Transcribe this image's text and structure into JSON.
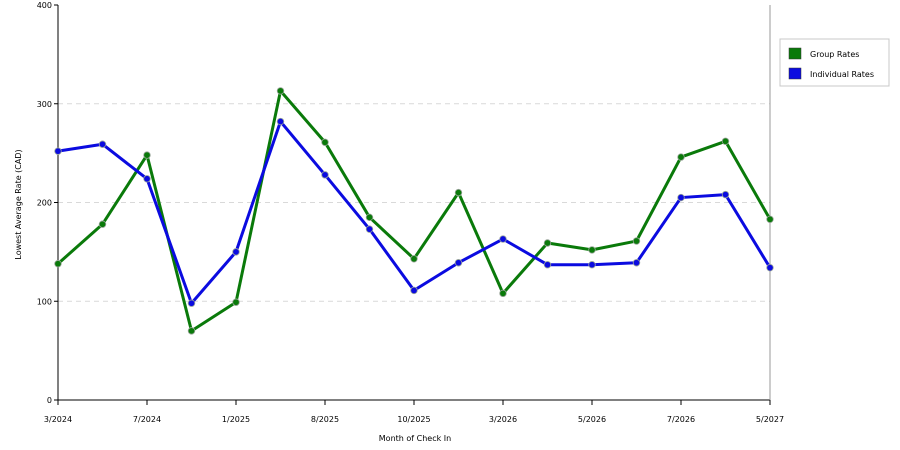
{
  "chart_data": {
    "type": "line",
    "title": "",
    "xlabel": "Month of Check In",
    "ylabel": "Lowest Average Rate (CAD)",
    "ylim": [
      0,
      400
    ],
    "yticks": [
      0,
      100,
      200,
      300,
      400
    ],
    "x_tick_labels": [
      "3/2024",
      "7/2024",
      "1/2025",
      "8/2025",
      "10/2025",
      "3/2026",
      "5/2026",
      "7/2026",
      "5/2027"
    ],
    "x_tick_positions": [
      0,
      2,
      4,
      6,
      8,
      10,
      12,
      14,
      16
    ],
    "grid": "horizontal dashed",
    "legend_placement": "top-right outside",
    "series": [
      {
        "name": "Group Rates",
        "color": "#0a7a0a",
        "values": [
          138,
          178,
          248,
          70,
          99,
          313,
          261,
          185,
          143,
          210,
          108,
          159,
          152,
          161,
          246,
          262,
          183
        ]
      },
      {
        "name": "Individual Rates",
        "color": "#0b0be0",
        "values": [
          252,
          259,
          224,
          98,
          150,
          282,
          228,
          173,
          111,
          139,
          163,
          137,
          137,
          139,
          205,
          208,
          134
        ]
      }
    ]
  }
}
